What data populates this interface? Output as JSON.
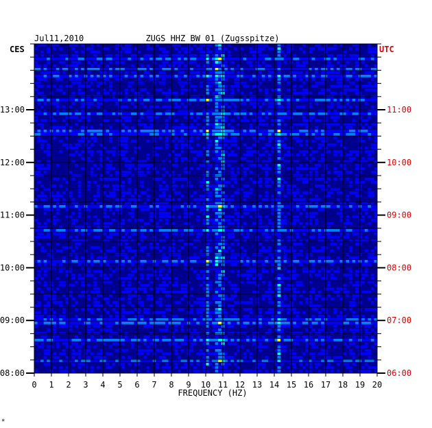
{
  "chart_data": {
    "type": "heatmap",
    "header_left": "Jul11,2010",
    "title": "ZUGS HHZ BW 01 (Zugsspitze)",
    "left_axis_label": "CES",
    "right_axis_label": "UTC",
    "xlabel": "FREQUENCY (HZ)",
    "x_range": [
      0,
      20
    ],
    "x_ticks": [
      "0",
      "1",
      "2",
      "3",
      "4",
      "5",
      "6",
      "7",
      "8",
      "9",
      "10",
      "11",
      "12",
      "13",
      "14",
      "15",
      "16",
      "17",
      "18",
      "19",
      "20"
    ],
    "y_range_hours": [
      8,
      14.25
    ],
    "left_ticks": [
      {
        "hour": 8,
        "label": "08:00"
      },
      {
        "hour": 9,
        "label": "09:00"
      },
      {
        "hour": 10,
        "label": "10:00"
      },
      {
        "hour": 11,
        "label": "11:00"
      },
      {
        "hour": 12,
        "label": "12:00"
      },
      {
        "hour": 13,
        "label": "13:00"
      }
    ],
    "right_ticks": [
      {
        "hour": 8,
        "label": "06:00"
      },
      {
        "hour": 9,
        "label": "07:00"
      },
      {
        "hour": 10,
        "label": "08:00"
      },
      {
        "hour": 11,
        "label": "09:00"
      },
      {
        "hour": 12,
        "label": "10:00"
      },
      {
        "hour": 13,
        "label": "11:00"
      }
    ],
    "color_scale": [
      "#00008b",
      "#0000ff",
      "#0080ff",
      "#00ffff",
      "#ffff00",
      "#ff0000"
    ],
    "background_color": "#000090",
    "right_label_color": "#e00000",
    "grid": true,
    "persistent_bands_hz": [
      10.1,
      10.6,
      10.9,
      14.3
    ],
    "footer_mark": "*"
  }
}
